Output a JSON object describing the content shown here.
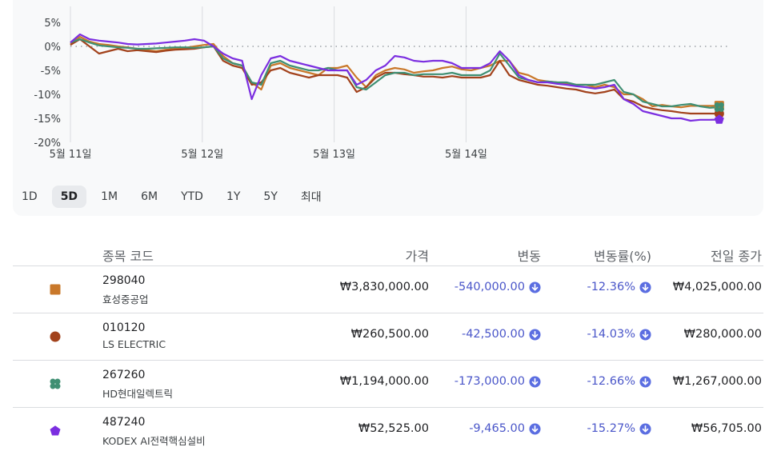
{
  "chart_data": {
    "type": "line",
    "x_ticks": [
      "5월 11일",
      "5월 12일",
      "5월 13일",
      "5월 14일"
    ],
    "y_ticks": [
      "5%",
      "0%",
      "-5%",
      "-10%",
      "-15%",
      "-20%"
    ],
    "ylim": [
      -20,
      5
    ],
    "unit": "%",
    "baseline": 0,
    "grid": "vertical day separators",
    "series": [
      {
        "name": "298040",
        "color": "#c9782a",
        "marker": "square",
        "values": [
          0.5,
          2,
          1,
          0.5,
          0.3,
          0,
          -0.2,
          -0.5,
          -0.8,
          -1,
          -0.7,
          -0.5,
          -0.3,
          0,
          0.3,
          0.5,
          -2,
          -3.5,
          -4,
          -7.5,
          -9,
          -4,
          -3.5,
          -4.5,
          -5,
          -5.5,
          -6,
          -4.5,
          -4.5,
          -4,
          -6.5,
          -8.5,
          -6,
          -5,
          -4.5,
          -4.8,
          -5.5,
          -5.2,
          -5,
          -4.5,
          -4.2,
          -4.8,
          -5,
          -4.5,
          -4,
          -3,
          -3,
          -5.5,
          -6,
          -7,
          -7.3,
          -7.5,
          -7.8,
          -8,
          -8,
          -8.5,
          -8,
          -8.5,
          -10,
          -10,
          -11,
          -12.5,
          -12.2,
          -12.5,
          -12.7,
          -12.4,
          -12.4,
          -12.4,
          -12.36
        ]
      },
      {
        "name": "010120",
        "color": "#a2421c",
        "marker": "circle",
        "values": [
          0.3,
          1.5,
          0,
          -1.5,
          -1,
          -0.5,
          -1,
          -0.8,
          -1,
          -1.2,
          -0.9,
          -0.7,
          -0.6,
          -0.5,
          -0.2,
          0,
          -3,
          -4,
          -4.5,
          -8,
          -7.5,
          -5,
          -4.5,
          -5.5,
          -6,
          -6.5,
          -6,
          -6,
          -6,
          -6.5,
          -9.5,
          -8.5,
          -6.5,
          -5.5,
          -5.5,
          -5.8,
          -6,
          -6.3,
          -6.3,
          -6.5,
          -6.2,
          -6.5,
          -6.5,
          -6.5,
          -6,
          -3,
          -6,
          -7,
          -7.5,
          -8,
          -8.2,
          -8.5,
          -8.8,
          -9,
          -9.5,
          -9.8,
          -9.5,
          -9,
          -11,
          -11.5,
          -12.5,
          -13,
          -13.3,
          -13.5,
          -13.8,
          -14,
          -14,
          -14,
          -14.03
        ]
      },
      {
        "name": "267260",
        "color": "#3f8f73",
        "marker": "flower",
        "values": [
          0.8,
          1.5,
          0.8,
          0.2,
          0,
          -0.2,
          -0.3,
          -0.5,
          -0.5,
          -0.4,
          -0.3,
          -0.2,
          -0.2,
          -0.3,
          -0.2,
          0,
          -2.5,
          -3.5,
          -4,
          -7.5,
          -8,
          -3.5,
          -3,
          -4,
          -4.5,
          -5,
          -5,
          -4.5,
          -5,
          -5,
          -8.5,
          -9,
          -7.5,
          -6,
          -5.5,
          -5.5,
          -6,
          -5.8,
          -5.8,
          -5.8,
          -5.5,
          -6,
          -6,
          -6,
          -5,
          -1.5,
          -4,
          -6.5,
          -7,
          -7.5,
          -7.3,
          -7.5,
          -7.5,
          -8,
          -8,
          -8,
          -7.5,
          -7,
          -9.5,
          -10,
          -11.5,
          -12,
          -12.5,
          -12.5,
          -12.2,
          -12,
          -12.5,
          -12.8,
          -12.66
        ]
      },
      {
        "name": "487240",
        "color": "#7b2ee0",
        "marker": "pentagon",
        "values": [
          0.8,
          2.5,
          1.5,
          1.2,
          1,
          0.8,
          0.5,
          0.4,
          0.5,
          0.6,
          0.8,
          1,
          1.2,
          1.5,
          1.2,
          0,
          -1.5,
          -2.5,
          -3,
          -11,
          -6,
          -2.5,
          -2,
          -3,
          -3.5,
          -4,
          -4.5,
          -5,
          -5,
          -5,
          -8,
          -7,
          -5,
          -4,
          -2,
          -2.3,
          -3,
          -3.2,
          -3,
          -3,
          -3.5,
          -4.5,
          -4.5,
          -4.5,
          -3.5,
          -1,
          -3,
          -6,
          -7,
          -7.5,
          -7.5,
          -7.8,
          -8,
          -8.3,
          -8.5,
          -8.8,
          -8.5,
          -8,
          -11,
          -12,
          -13.5,
          -14,
          -14.5,
          -15,
          -15,
          -15.5,
          -15.3,
          -15.3,
          -15.27
        ]
      }
    ]
  },
  "range_tabs": {
    "t1D": "1D",
    "t5D": "5D",
    "t1M": "1M",
    "t6M": "6M",
    "tYTD": "YTD",
    "t1Y": "1Y",
    "t5Y": "5Y",
    "tMax": "최대"
  },
  "table": {
    "headers": {
      "code": "종목 코드",
      "price": "가격",
      "change": "변동",
      "pct": "변동률(%)",
      "prev": "전일 종가"
    },
    "rows": [
      {
        "code": "298040",
        "name": "효성중공업",
        "price": "₩3,830,000.00",
        "change": "-540,000.00",
        "pct": "-12.36%",
        "prev": "₩4,025,000.00",
        "color": "#c9782a",
        "marker": "square"
      },
      {
        "code": "010120",
        "name": "LS ELECTRIC",
        "price": "₩260,500.00",
        "change": "-42,500.00",
        "pct": "-14.03%",
        "prev": "₩280,000.00",
        "color": "#a2421c",
        "marker": "circle"
      },
      {
        "code": "267260",
        "name": "HD현대일렉트릭",
        "price": "₩1,194,000.00",
        "change": "-173,000.00",
        "pct": "-12.66%",
        "prev": "₩1,267,000.00",
        "color": "#3f8f73",
        "marker": "flower"
      },
      {
        "code": "487240",
        "name": "KODEX AI전력핵심설비",
        "price": "₩52,525.00",
        "change": "-9,465.00",
        "pct": "-15.27%",
        "prev": "₩56,705.00",
        "color": "#7b2ee0",
        "marker": "pentagon"
      }
    ]
  },
  "icons": {
    "down": "arrow-down-circle-icon"
  },
  "colors": {
    "negative": "#4a56c9",
    "icon_fill": "#5b6ee1"
  }
}
